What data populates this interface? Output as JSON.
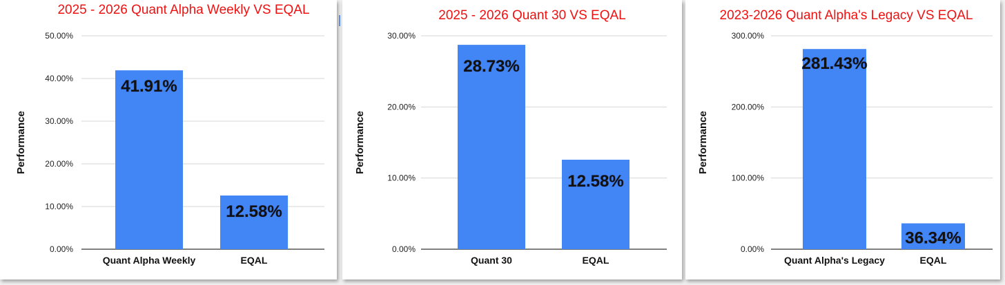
{
  "colors": {
    "bar": "#4285f4",
    "title": "#ee1111"
  },
  "chart_data": [
    {
      "type": "bar",
      "title": "2025 - 2026 Quant Alpha Weekly VS EQAL",
      "xlabel": "",
      "ylabel": "Performance",
      "ylim": [
        0,
        50
      ],
      "yticks": [
        0,
        10,
        20,
        30,
        40,
        50
      ],
      "ytick_labels": [
        "0.00%",
        "10.00%",
        "20.00%",
        "30.00%",
        "40.00%",
        "50.00%"
      ],
      "categories": [
        "Quant Alpha Weekly",
        "EQAL"
      ],
      "values": [
        41.91,
        12.58
      ],
      "data_labels": [
        "41.91%",
        "12.58%"
      ],
      "grid": true,
      "legend": "none"
    },
    {
      "type": "bar",
      "title": "2025 - 2026 Quant 30 VS EQAL",
      "xlabel": "",
      "ylabel": "Performance",
      "ylim": [
        0,
        30
      ],
      "yticks": [
        0,
        10,
        20,
        30
      ],
      "ytick_labels": [
        "0.00%",
        "10.00%",
        "20.00%",
        "30.00%"
      ],
      "categories": [
        "Quant 30",
        "EQAL"
      ],
      "values": [
        28.73,
        12.58
      ],
      "data_labels": [
        "28.73%",
        "12.58%"
      ],
      "grid": true,
      "legend": "none"
    },
    {
      "type": "bar",
      "title": "2023-2026 Quant Alpha's Legacy VS EQAL",
      "xlabel": "",
      "ylabel": "Performance",
      "ylim": [
        0,
        300
      ],
      "yticks": [
        0,
        100,
        200,
        300
      ],
      "ytick_labels": [
        "0.00%",
        "100.00%",
        "200.00%",
        "300.00%"
      ],
      "categories": [
        "Quant Alpha's Legacy",
        "EQAL"
      ],
      "values": [
        281.43,
        36.34
      ],
      "data_labels": [
        "281.43%",
        "36.34%"
      ],
      "grid": true,
      "legend": "none"
    }
  ]
}
